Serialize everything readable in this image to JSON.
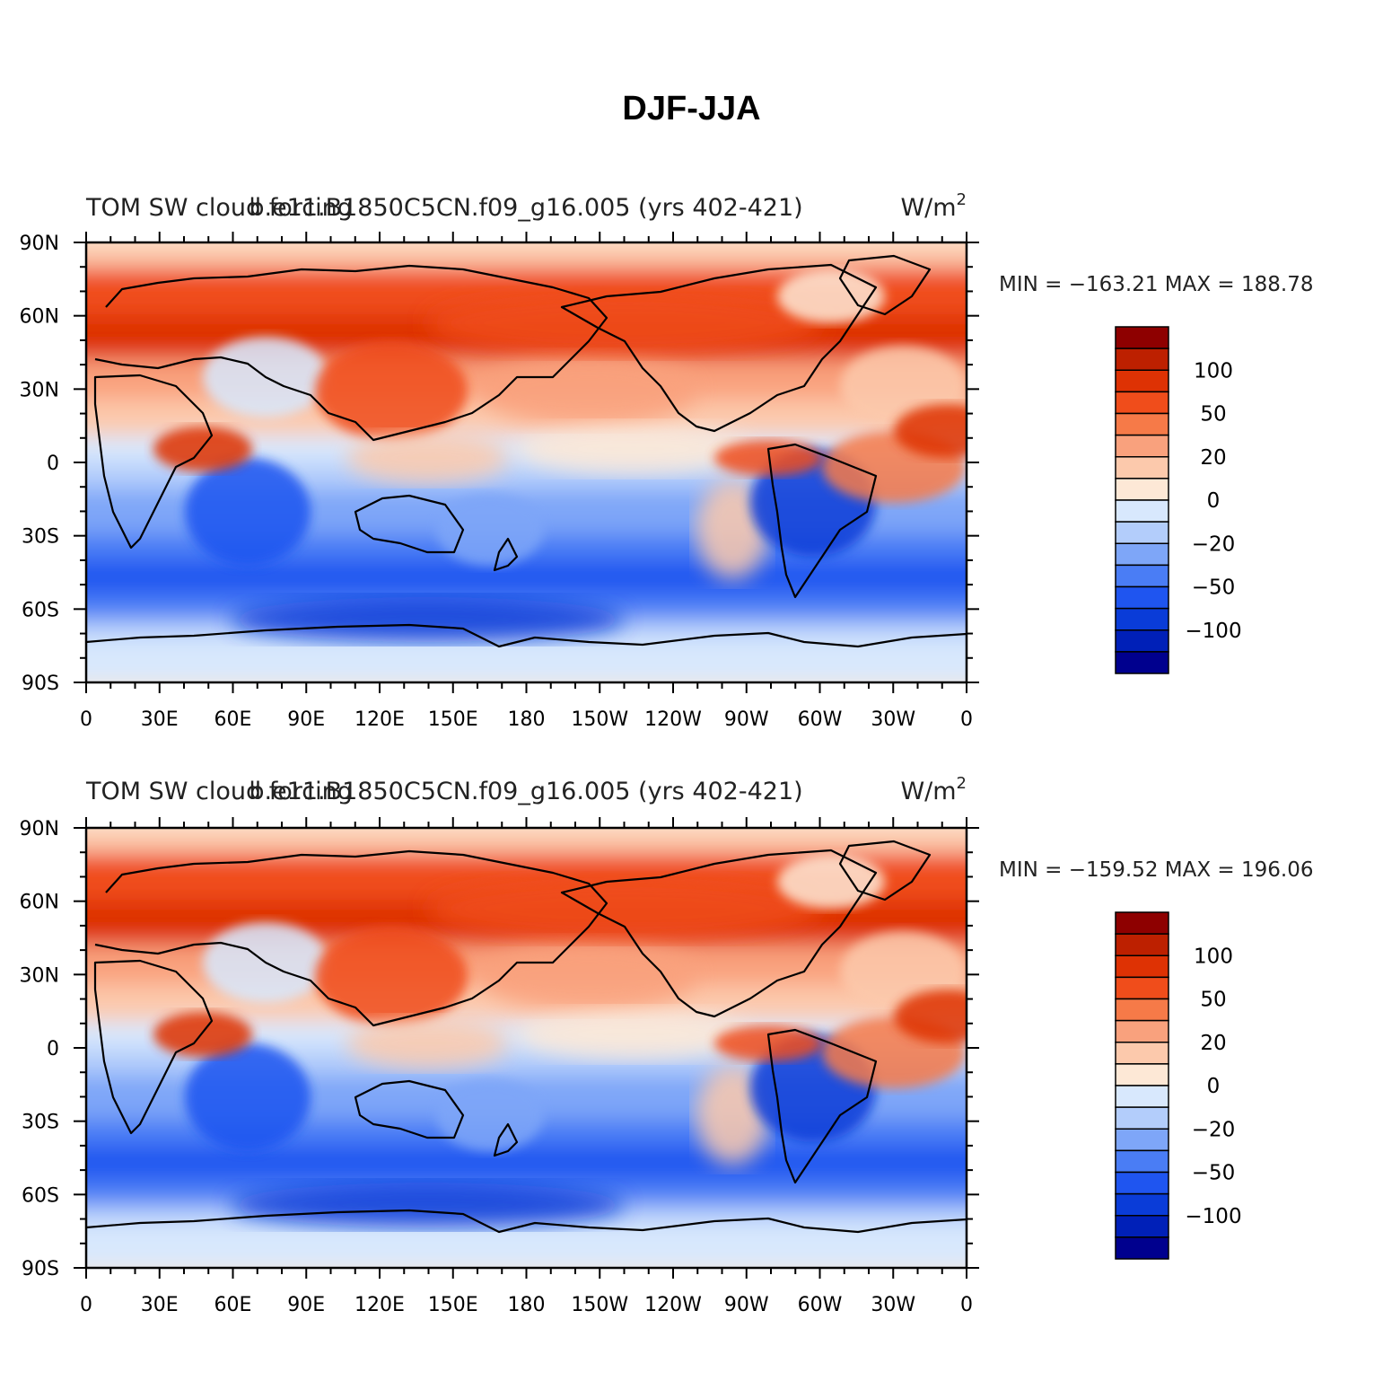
{
  "title": "DJF-JJA",
  "chart_data": [
    {
      "type": "heatmap",
      "left_title": "TOM SW cloud forcing",
      "center_title": "b.e11.B1850C5CN.f09_g16.005 (yrs 402-421)",
      "right_title": "W/m",
      "right_title_sup": "2",
      "min_max_label": "MIN = −163.21  MAX = 188.78",
      "min": -163.21,
      "max": 188.78,
      "x_ticks": [
        "0",
        "30E",
        "60E",
        "90E",
        "120E",
        "150E",
        "180",
        "150W",
        "120W",
        "90W",
        "60W",
        "30W",
        "0"
      ],
      "y_ticks": [
        "90N",
        "60N",
        "30N",
        "0",
        "30S",
        "60S",
        "90S"
      ],
      "colorbar_levels": [
        -150,
        -125,
        -100,
        -75,
        -50,
        -35,
        -20,
        -10,
        0,
        10,
        20,
        35,
        50,
        75,
        100,
        125,
        150
      ],
      "colorbar_labels": [
        "100",
        "50",
        "20",
        "0",
        "−20",
        "−50",
        "−100"
      ],
      "colorbar_label_values": [
        100,
        50,
        20,
        0,
        -20,
        -50,
        -100
      ]
    },
    {
      "type": "heatmap",
      "left_title": "TOM SW cloud forcing",
      "center_title": "b.e11.B1850C5CN.f09_g16.005 (yrs 402-421)",
      "right_title": "W/m",
      "right_title_sup": "2",
      "min_max_label": "MIN = −159.52  MAX = 196.06",
      "min": -159.52,
      "max": 196.06,
      "x_ticks": [
        "0",
        "30E",
        "60E",
        "90E",
        "120E",
        "150E",
        "180",
        "150W",
        "120W",
        "90W",
        "60W",
        "30W",
        "0"
      ],
      "y_ticks": [
        "90N",
        "60N",
        "30N",
        "0",
        "30S",
        "60S",
        "90S"
      ],
      "colorbar_levels": [
        -150,
        -125,
        -100,
        -75,
        -50,
        -35,
        -20,
        -10,
        0,
        10,
        20,
        35,
        50,
        75,
        100,
        125,
        150
      ],
      "colorbar_labels": [
        "100",
        "50",
        "20",
        "0",
        "−20",
        "−50",
        "−100"
      ],
      "colorbar_label_values": [
        100,
        50,
        20,
        0,
        -20,
        -50,
        -100
      ]
    }
  ],
  "colors": {
    "palette": [
      "#00008e",
      "#0020b8",
      "#0a3cd8",
      "#1f55f0",
      "#4a7df5",
      "#7ea6f8",
      "#b3cdfb",
      "#d8e8fd",
      "#fde8d6",
      "#fcc9ac",
      "#f9a17d",
      "#f67a48",
      "#f04d1b",
      "#de3204",
      "#bd2000",
      "#8e0000"
    ]
  }
}
